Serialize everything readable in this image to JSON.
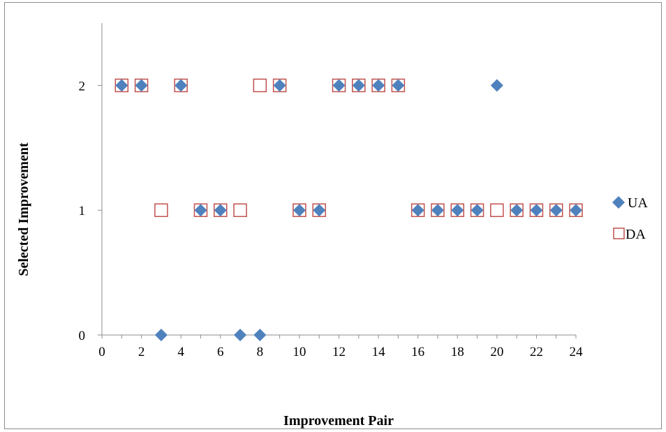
{
  "chart_data": {
    "type": "scatter",
    "title": "",
    "xlabel": "Improvement Pair",
    "ylabel": "Selected Improvement",
    "xlim": [
      0,
      24
    ],
    "ylim": [
      0,
      2.5
    ],
    "xticks": [
      0,
      2,
      4,
      6,
      8,
      10,
      12,
      14,
      16,
      18,
      20,
      22,
      24
    ],
    "yticks": [
      0,
      1,
      2
    ],
    "grid": false,
    "legend_position": "right",
    "series": [
      {
        "name": "UA",
        "marker": "diamond",
        "color": "#4F81BD",
        "x": [
          1,
          2,
          3,
          4,
          5,
          6,
          7,
          8,
          9,
          10,
          11,
          12,
          13,
          14,
          15,
          16,
          17,
          18,
          19,
          20,
          21,
          22,
          23,
          24
        ],
        "y": [
          2,
          2,
          0,
          2,
          1,
          1,
          0,
          0,
          2,
          1,
          1,
          2,
          2,
          2,
          2,
          1,
          1,
          1,
          1,
          2,
          1,
          1,
          1,
          1
        ]
      },
      {
        "name": "DA",
        "marker": "square-open",
        "color": "#C0504D",
        "x": [
          1,
          2,
          3,
          4,
          5,
          6,
          7,
          8,
          9,
          10,
          11,
          12,
          13,
          14,
          15,
          16,
          17,
          18,
          19,
          20,
          21,
          22,
          23,
          24
        ],
        "y": [
          2,
          2,
          1,
          2,
          1,
          1,
          1,
          2,
          2,
          1,
          1,
          2,
          2,
          2,
          2,
          1,
          1,
          1,
          1,
          1,
          1,
          1,
          1,
          1
        ]
      }
    ]
  }
}
